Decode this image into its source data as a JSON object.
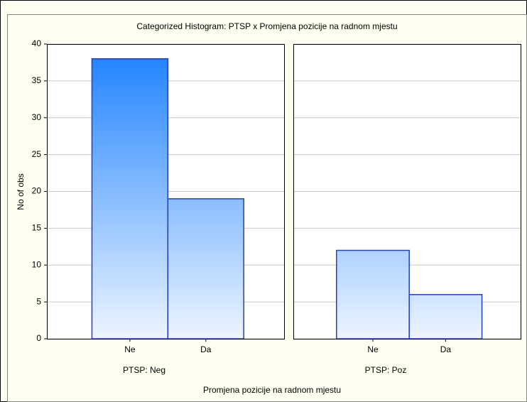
{
  "chart_data": {
    "type": "bar",
    "title": "Categorized Histogram: PTSP x Promjena pozicije na radnom mjestu",
    "ylabel": "No of obs",
    "xlabel": "Promjena pozicije na radnom mjestu",
    "categories": [
      "Ne",
      "Da"
    ],
    "panels": [
      {
        "name": "PTSP: Neg",
        "values": [
          38,
          19
        ]
      },
      {
        "name": "PTSP: Poz",
        "values": [
          12,
          6
        ]
      }
    ],
    "ylim": [
      0,
      40
    ],
    "yticks": [
      0,
      5,
      10,
      15,
      20,
      25,
      30,
      35,
      40
    ],
    "grid": true,
    "color": "#1a7fff"
  }
}
